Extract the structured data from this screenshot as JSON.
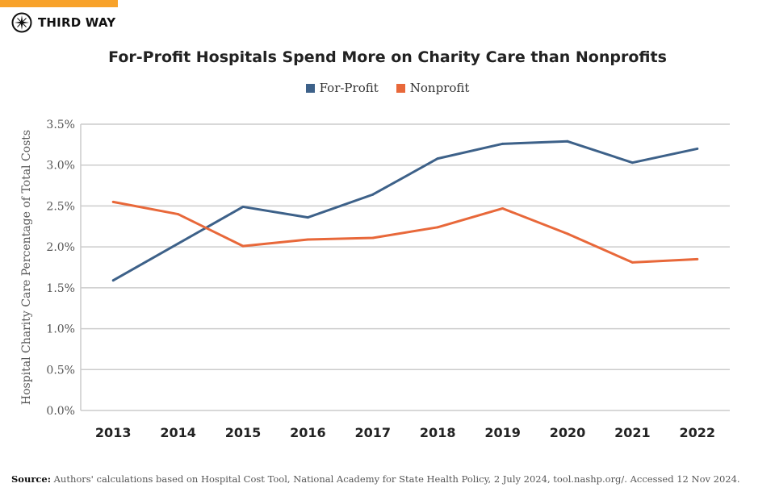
{
  "brand": {
    "name": "THIRD WAY",
    "accent": "#f8a22a"
  },
  "chart_data": {
    "type": "line",
    "title": "For-Profit Hospitals Spend More on Charity Care than Nonprofits",
    "ylabel": "Hospital Charity Care Percentage of Total Costs",
    "xlabel": "",
    "categories": [
      "2013",
      "2014",
      "2015",
      "2016",
      "2017",
      "2018",
      "2019",
      "2020",
      "2021",
      "2022"
    ],
    "ylim": [
      0,
      3.5
    ],
    "yticks": [
      0,
      0.5,
      1.0,
      1.5,
      2.0,
      2.5,
      3.0,
      3.5
    ],
    "ytick_labels": [
      "0.0%",
      "0.5%",
      "1.0%",
      "1.5%",
      "2.0%",
      "2.5%",
      "3.0%",
      "3.5%"
    ],
    "grid": true,
    "legend_position": "top-center",
    "series": [
      {
        "name": "For-Profit",
        "color": "#3d6189",
        "values": [
          1.59,
          2.04,
          2.49,
          2.36,
          2.64,
          3.08,
          3.26,
          3.29,
          3.03,
          3.2
        ]
      },
      {
        "name": "Nonprofit",
        "color": "#e8683a",
        "values": [
          2.55,
          2.4,
          2.01,
          2.09,
          2.11,
          2.24,
          2.47,
          2.16,
          1.81,
          1.85
        ]
      }
    ]
  },
  "source": {
    "label": "Source:",
    "text": " Authors' calculations based on Hospital Cost Tool, National Academy for State Health Policy, 2 July 2024, tool.nashp.org/. Accessed 12 Nov 2024."
  }
}
